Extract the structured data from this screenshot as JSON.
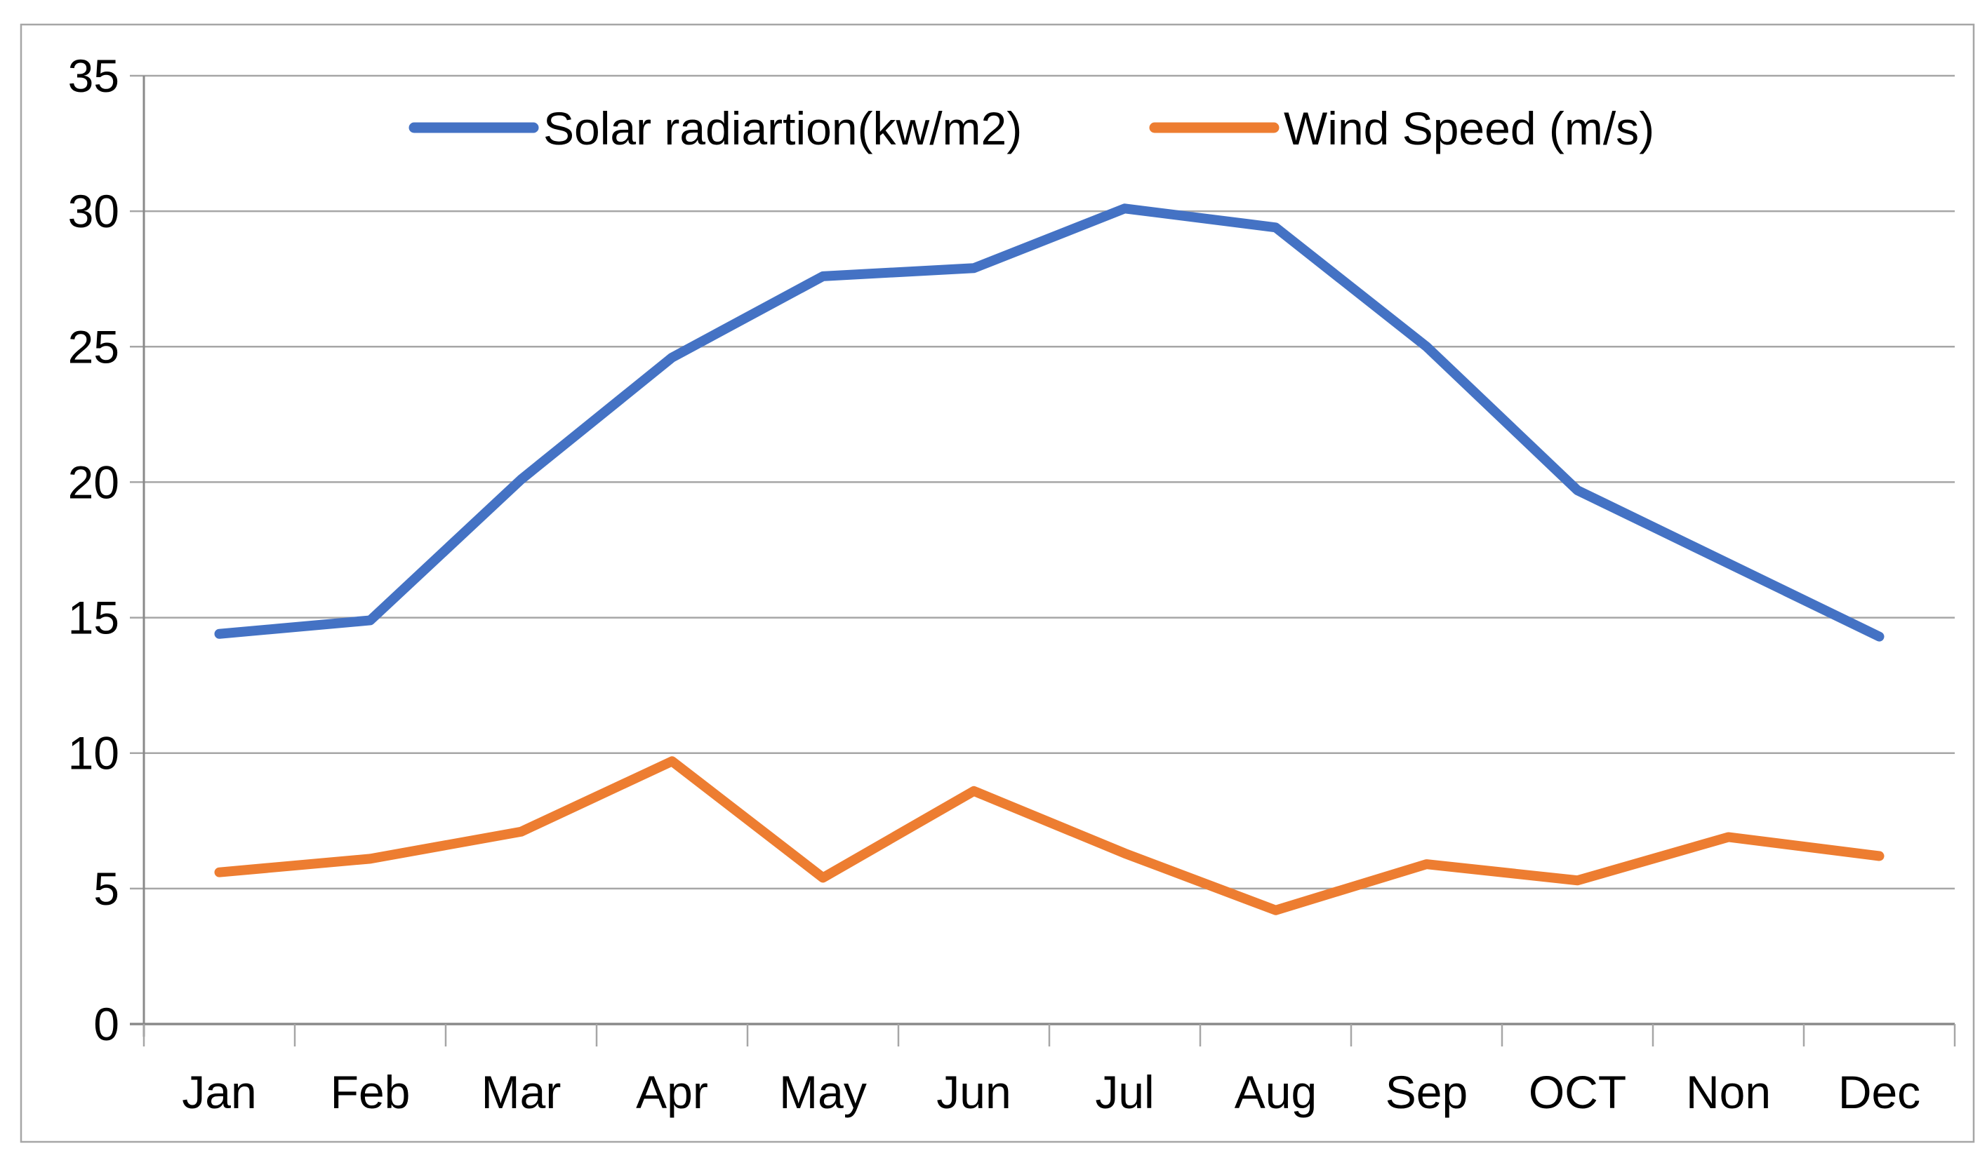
{
  "chart_data": {
    "type": "line",
    "title": "",
    "xlabel": "",
    "ylabel": "",
    "categories": [
      "Jan",
      "Feb",
      "Mar",
      "Apr",
      "May",
      "Jun",
      "Jul",
      "Aug",
      "Sep",
      "OCT",
      "Non",
      "Dec"
    ],
    "series": [
      {
        "name": "Solar radiartion(kw/m2)",
        "color": "#4472C4",
        "values": [
          14.4,
          14.9,
          20.1,
          24.6,
          27.6,
          27.9,
          30.1,
          29.4,
          25.0,
          19.7,
          17.0,
          14.3
        ]
      },
      {
        "name": "Wind Speed (m/s)",
        "color": "#ED7D31",
        "values": [
          5.6,
          6.1,
          7.1,
          9.7,
          5.4,
          8.6,
          6.3,
          4.2,
          5.9,
          5.3,
          6.9,
          6.2
        ]
      }
    ],
    "ylim": [
      0,
      35
    ],
    "ytick_step": 5,
    "ytick_labels": [
      "0",
      "5",
      "10",
      "15",
      "20",
      "25",
      "30",
      "35"
    ],
    "grid": true,
    "legend_position": "top-center",
    "colors": {
      "gridline": "#A6A6A6",
      "axis": "#898989",
      "frame_border": "#A6A6A6",
      "text": "#000000",
      "background": "#FFFFFF"
    }
  }
}
